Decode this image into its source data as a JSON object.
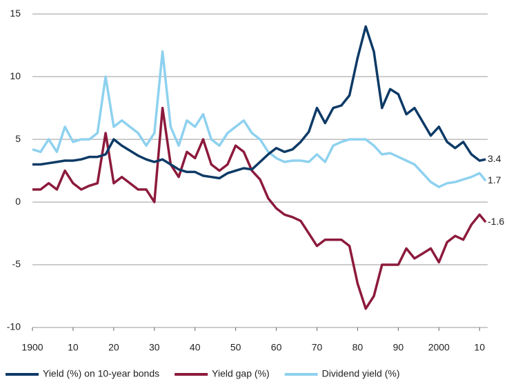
{
  "chart_data": {
    "type": "line",
    "x": [
      1900,
      1902,
      1904,
      1906,
      1908,
      1910,
      1912,
      1914,
      1916,
      1918,
      1920,
      1922,
      1924,
      1926,
      1928,
      1930,
      1932,
      1934,
      1936,
      1938,
      1940,
      1942,
      1944,
      1946,
      1948,
      1950,
      1952,
      1954,
      1956,
      1958,
      1960,
      1962,
      1964,
      1966,
      1968,
      1970,
      1972,
      1974,
      1976,
      1978,
      1980,
      1982,
      1984,
      1986,
      1988,
      1990,
      1992,
      1994,
      1996,
      1998,
      2000,
      2002,
      2004,
      2006,
      2008,
      2010,
      2011.5
    ],
    "series": [
      {
        "name": "Yield (%) on 10-year bonds",
        "color": "#0d3a66",
        "values": [
          3.0,
          3.0,
          3.1,
          3.2,
          3.3,
          3.3,
          3.4,
          3.6,
          3.6,
          3.8,
          5.0,
          4.5,
          4.1,
          3.7,
          3.4,
          3.2,
          3.4,
          3.0,
          2.6,
          2.4,
          2.4,
          2.1,
          2.0,
          1.9,
          2.3,
          2.5,
          2.7,
          2.6,
          3.2,
          3.8,
          4.3,
          4.0,
          4.2,
          4.8,
          5.6,
          7.5,
          6.3,
          7.5,
          7.7,
          8.5,
          11.5,
          14.0,
          12.0,
          7.5,
          9.0,
          8.6,
          7.0,
          7.5,
          6.4,
          5.3,
          6.0,
          4.8,
          4.3,
          4.8,
          3.8,
          3.3,
          3.4
        ]
      },
      {
        "name": "Yield gap (%)",
        "color": "#8c1a3c",
        "values": [
          1.0,
          1.0,
          1.5,
          1.0,
          2.5,
          1.5,
          1.0,
          1.3,
          1.5,
          5.5,
          1.5,
          2.0,
          1.5,
          1.0,
          1.0,
          0.0,
          7.5,
          3.0,
          2.0,
          4.0,
          3.5,
          5.0,
          3.0,
          2.5,
          3.0,
          4.5,
          4.0,
          2.5,
          1.8,
          0.3,
          -0.5,
          -1.0,
          -1.2,
          -1.5,
          -2.5,
          -3.5,
          -3.0,
          -3.0,
          -3.0,
          -3.5,
          -6.5,
          -8.5,
          -7.5,
          -5.0,
          -5.0,
          -5.0,
          -3.7,
          -4.5,
          -4.1,
          -3.7,
          -4.8,
          -3.2,
          -2.7,
          -3.0,
          -1.8,
          -1.0,
          -1.6
        ]
      },
      {
        "name": "Dividend yield (%)",
        "color": "#8ed1ef",
        "values": [
          4.2,
          4.0,
          5.0,
          4.0,
          6.0,
          4.8,
          5.0,
          5.0,
          5.5,
          10.0,
          6.0,
          6.5,
          6.0,
          5.5,
          4.5,
          5.5,
          12.0,
          6.0,
          4.5,
          6.5,
          6.0,
          7.0,
          5.0,
          4.5,
          5.5,
          6.0,
          6.5,
          5.5,
          5.0,
          4.0,
          3.5,
          3.2,
          3.3,
          3.3,
          3.2,
          3.8,
          3.2,
          4.5,
          4.8,
          5.0,
          5.0,
          5.0,
          4.5,
          3.8,
          3.9,
          3.6,
          3.3,
          3.0,
          2.3,
          1.6,
          1.2,
          1.5,
          1.6,
          1.8,
          2.0,
          2.3,
          1.7
        ]
      }
    ],
    "xlim": [
      1900,
      2012
    ],
    "xticks": [
      1900,
      {
        "value": 1910,
        "label": "10"
      },
      {
        "value": 1920,
        "label": "20"
      },
      {
        "value": 1930,
        "label": "30"
      },
      {
        "value": 1940,
        "label": "40"
      },
      {
        "value": 1950,
        "label": "50"
      },
      {
        "value": 1960,
        "label": "60"
      },
      {
        "value": 1970,
        "label": "70"
      },
      {
        "value": 1980,
        "label": "80"
      },
      {
        "value": 1990,
        "label": "90"
      },
      2000,
      {
        "value": 2010,
        "label": "10"
      }
    ],
    "ylim": [
      -10,
      16
    ],
    "yticks": [
      15,
      10,
      5,
      0,
      -5,
      -10
    ],
    "grid": true,
    "legend": "bottom"
  }
}
